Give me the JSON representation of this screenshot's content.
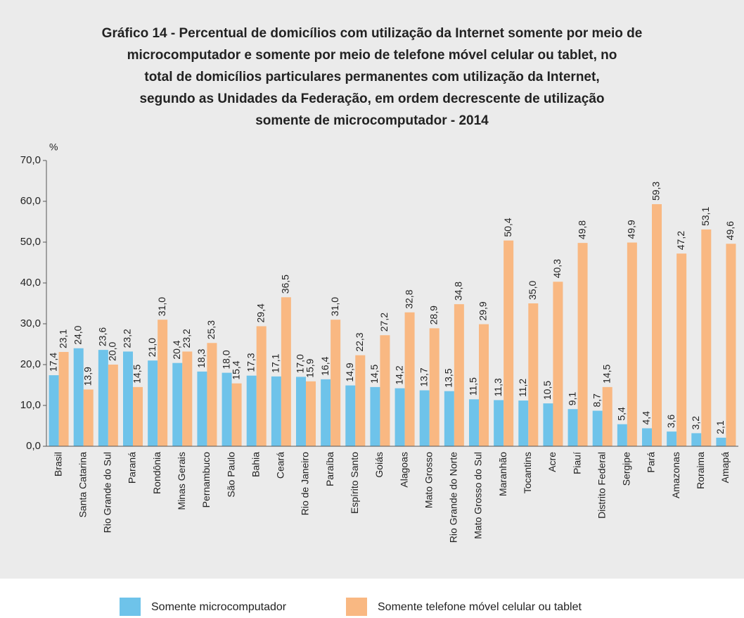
{
  "chart_data": {
    "type": "bar",
    "title": [
      "Gráfico 14 - Percentual de domicílios com utilização da Internet somente por meio de",
      "microcomputador e somente por meio de telefone móvel celular ou tablet, no",
      "total de domicílios particulares permanentes com utilização da Internet,",
      "segundo as Unidades da Federação, em ordem decrescente de utilização",
      "somente de microcomputador - 2014"
    ],
    "y_label": "%",
    "categories": [
      "Brasil",
      "Santa Catarina",
      "Rio Grande do Sul",
      "Paraná",
      "Rondônia",
      "Minas Gerais",
      "Pernambuco",
      "São Paulo",
      "Bahia",
      "Ceará",
      "Rio de Janeiro",
      "Paraíba",
      "Espírito Santo",
      "Goiás",
      "Alagoas",
      "Mato Grosso",
      "Rio Grande do Norte",
      "Mato Grosso do Sul",
      "Maranhão",
      "Tocantins",
      "Acre",
      "Piauí",
      "Distrito Federal",
      "Sergipe",
      "Pará",
      "Amazonas",
      "Roraima",
      "Amapá"
    ],
    "series": [
      {
        "name": "Somente microcomputador",
        "color": "#6ec3ea",
        "values": [
          17.4,
          24.0,
          23.6,
          23.2,
          21.0,
          20.4,
          18.3,
          18.0,
          17.3,
          17.1,
          17.0,
          16.4,
          14.9,
          14.5,
          14.2,
          13.7,
          13.5,
          11.5,
          11.3,
          11.2,
          10.5,
          9.1,
          8.7,
          5.4,
          4.4,
          3.6,
          3.2,
          2.1
        ],
        "value_labels": [
          "17,4",
          "24,0",
          "23,6",
          "23,2",
          "21,0",
          "20,4",
          "18,3",
          "18,0",
          "17,3",
          "17,1",
          "17,0",
          "16,4",
          "14,9",
          "14,5",
          "14,2",
          "13,7",
          "13,5",
          "11,5",
          "11,3",
          "11,2",
          "10,5",
          "9,1",
          "8,7",
          "5,4",
          "4,4",
          "3,6",
          "3,2",
          "2,1"
        ]
      },
      {
        "name": "Somente telefone móvel celular ou tablet",
        "color": "#f9b882",
        "values": [
          23.1,
          13.9,
          20.0,
          14.5,
          31.0,
          23.2,
          25.3,
          15.4,
          29.4,
          36.5,
          15.9,
          31.0,
          22.3,
          27.2,
          32.8,
          28.9,
          34.8,
          29.9,
          50.4,
          35.0,
          40.3,
          49.8,
          14.5,
          49.9,
          59.3,
          47.2,
          53.1,
          49.6
        ],
        "value_labels": [
          "23,1",
          "13,9",
          "20,0",
          "14,5",
          "31,0",
          "23,2",
          "25,3",
          "15,4",
          "29,4",
          "36,5",
          "15,9",
          "31,0",
          "22,3",
          "27,2",
          "32,8",
          "28,9",
          "34,8",
          "29,9",
          "50,4",
          "35,0",
          "40,3",
          "49,8",
          "14,5",
          "49,9",
          "59,3",
          "47,2",
          "53,1",
          "49,6"
        ]
      }
    ],
    "ylim": [
      0,
      70
    ],
    "yticks": [
      {
        "value": 0,
        "label": "0,0"
      },
      {
        "value": 10,
        "label": "10,0"
      },
      {
        "value": 20,
        "label": "20,0"
      },
      {
        "value": 30,
        "label": "30,0"
      },
      {
        "value": 40,
        "label": "40,0"
      },
      {
        "value": 50,
        "label": "50,0"
      },
      {
        "value": 60,
        "label": "60,0"
      },
      {
        "value": 70,
        "label": "70,0"
      }
    ]
  }
}
